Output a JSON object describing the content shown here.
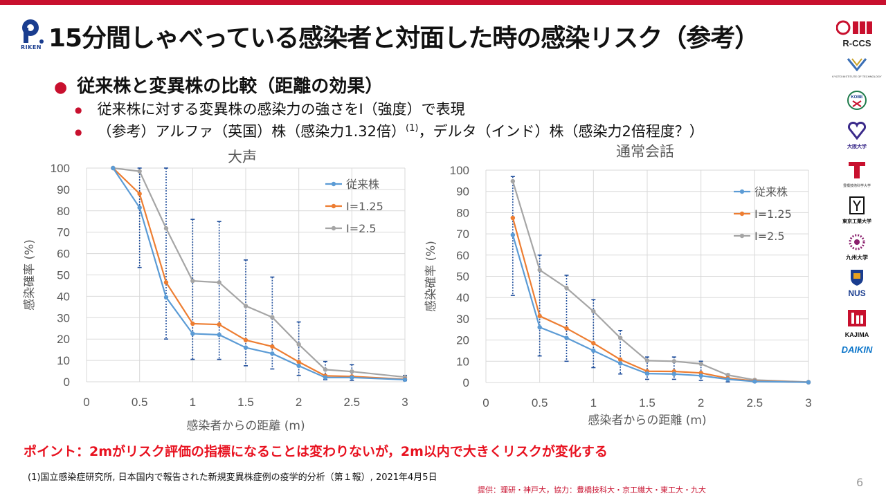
{
  "header": {
    "title": "15分間しゃべっている感染者と対面した時の感染リスク（参考）",
    "logo_text": "RIKEN"
  },
  "bullets": {
    "main": "従来株と変異株の比較（距離の効果）",
    "sub1": "従来株に対する変異株の感染力の強さをI（強度）で表現",
    "sub2_pre": "（参考）アルファ（英国）株（感染力1.32倍）",
    "sub2_sup": "(1)",
    "sub2_post": "，デルタ（インド）株（感染力2倍程度？）"
  },
  "footer": {
    "point": "ポイント：2mがリスク評価の指標になることは変わりないが，2m以内で大きくリスクが変化する",
    "reference": "(1)国立感染症研究所, 日本国内で報告された新規変異株症例の疫学的分析（第１報）, 2021年4月5日",
    "page_number": "6",
    "credit": "提供：理研・神戸大，協力：豊橋技科大・京工繊大・東工大・九大"
  },
  "logos": {
    "items": [
      {
        "name": "rccs-logo",
        "text": "R-CCS"
      },
      {
        "name": "kyoto-tech-logo",
        "text": "KYOTO INSTITUTE OF TECHNOLOGY"
      },
      {
        "name": "kobe-logo",
        "text": "KOBE"
      },
      {
        "name": "osaka-logo",
        "text": "大阪大学"
      },
      {
        "name": "toyohashi-logo",
        "text": "豊橋技術科学大学"
      },
      {
        "name": "titech-logo",
        "text": "東京工業大学"
      },
      {
        "name": "kyushu-logo",
        "text": "九州大学"
      },
      {
        "name": "nus-logo",
        "text": "NUS"
      },
      {
        "name": "kajima-logo",
        "text": "KAJIMA"
      },
      {
        "name": "daikin-logo",
        "text": "DAIKIN"
      }
    ]
  },
  "colors": {
    "accent": "#c8102e",
    "point_text": "#e8111f",
    "series_blue": "#5b9bd5",
    "series_orange": "#ed7d31",
    "series_gray": "#a5a5a5",
    "errorbar": "#1f4e9c"
  },
  "chart_data": [
    {
      "type": "line",
      "title": "大声",
      "xlabel": "感染者からの距離 (m)",
      "ylabel": "感染確率 (%)",
      "xlim": [
        0,
        3
      ],
      "ylim": [
        0,
        100
      ],
      "xticks": [
        "0",
        "0.5",
        "1",
        "1.5",
        "2",
        "2.5",
        "3"
      ],
      "yticks": [
        "0",
        "10",
        "20",
        "30",
        "40",
        "50",
        "60",
        "70",
        "80",
        "90",
        "100"
      ],
      "legend": "top-right",
      "grid": true,
      "x": [
        0.25,
        0.5,
        0.75,
        1.0,
        1.25,
        1.5,
        1.75,
        2.0,
        2.25,
        2.5,
        3.0
      ],
      "series": [
        {
          "name": "従来株",
          "color": "#5b9bd5",
          "values": [
            100,
            81.5,
            39.5,
            22.5,
            22,
            16,
            13.2,
            7.5,
            2,
            2,
            1
          ],
          "err_low": [
            100,
            53.5,
            20,
            10.5,
            10.5,
            7.5,
            6,
            3,
            1,
            0.7,
            0.5
          ],
          "err_high": [
            100,
            100,
            100,
            76,
            75,
            57,
            49,
            28,
            9.5,
            8,
            3
          ]
        },
        {
          "name": "I=1.25",
          "color": "#ed7d31",
          "values": [
            100,
            88,
            46.5,
            27.2,
            26.8,
            19.5,
            16.5,
            9.3,
            2.8,
            2.5,
            1.2
          ]
        },
        {
          "name": "I=2.5",
          "color": "#a5a5a5",
          "values": [
            100,
            98.5,
            71.8,
            47.2,
            46.5,
            35.5,
            30.2,
            17.5,
            5.7,
            4.8,
            2.2
          ]
        }
      ]
    },
    {
      "type": "line",
      "title": "通常会話",
      "xlabel": "感染者からの距離 (m)",
      "ylabel": "感染確率 (%)",
      "xlim": [
        0,
        3
      ],
      "ylim": [
        0,
        100
      ],
      "xticks": [
        "0",
        "0.5",
        "1",
        "1.5",
        "2",
        "2.5",
        "3"
      ],
      "yticks": [
        "0",
        "10",
        "20",
        "30",
        "40",
        "50",
        "60",
        "70",
        "80",
        "90",
        "100"
      ],
      "legend": "top-right",
      "grid": true,
      "x": [
        0.25,
        0.5,
        0.75,
        1.0,
        1.25,
        1.5,
        1.75,
        2.0,
        2.25,
        2.5,
        3.0
      ],
      "series": [
        {
          "name": "従来株",
          "color": "#5b9bd5",
          "values": [
            69.5,
            26,
            21,
            15,
            9,
            4.2,
            4,
            3.2,
            1.5,
            0.5,
            0.1
          ],
          "err_low": [
            41,
            12.5,
            10,
            7,
            4,
            1.5,
            1.5,
            1,
            0.3,
            0.1,
            0
          ],
          "err_high": [
            97,
            60,
            50.5,
            39,
            24.5,
            12,
            12,
            10,
            4,
            1.5,
            0.3
          ]
        },
        {
          "name": "I=1.25",
          "color": "#ed7d31",
          "values": [
            77.5,
            31.3,
            25.5,
            18.5,
            10.8,
            5.3,
            5.2,
            4.5,
            2,
            0.7,
            0.1
          ]
        },
        {
          "name": "I=2.5",
          "color": "#a5a5a5",
          "values": [
            94.8,
            53,
            44.5,
            33.5,
            21,
            10.3,
            10,
            8.8,
            3.5,
            1.2,
            0.2
          ]
        }
      ]
    }
  ]
}
